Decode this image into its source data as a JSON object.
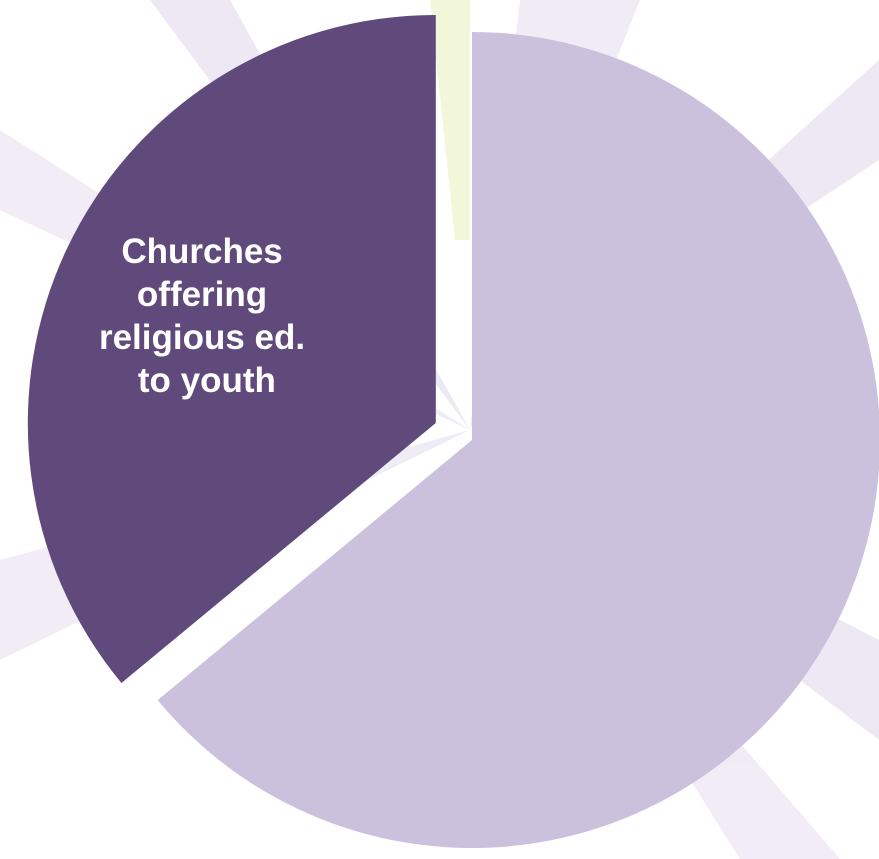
{
  "chart_data": {
    "type": "pie",
    "title": "",
    "slices": [
      {
        "label_lines": [
          "Churches",
          "offering",
          "religious ed.",
          "to youth"
        ],
        "value": 36,
        "color": "#5f4a7b",
        "exploded": true
      },
      {
        "label_lines": [],
        "value": 64,
        "color": "#cbc1dc",
        "exploded": false
      }
    ],
    "legend": "none"
  },
  "colors": {
    "background_accent": "#ece6f3",
    "background_highlight": "#f2f7d6"
  }
}
